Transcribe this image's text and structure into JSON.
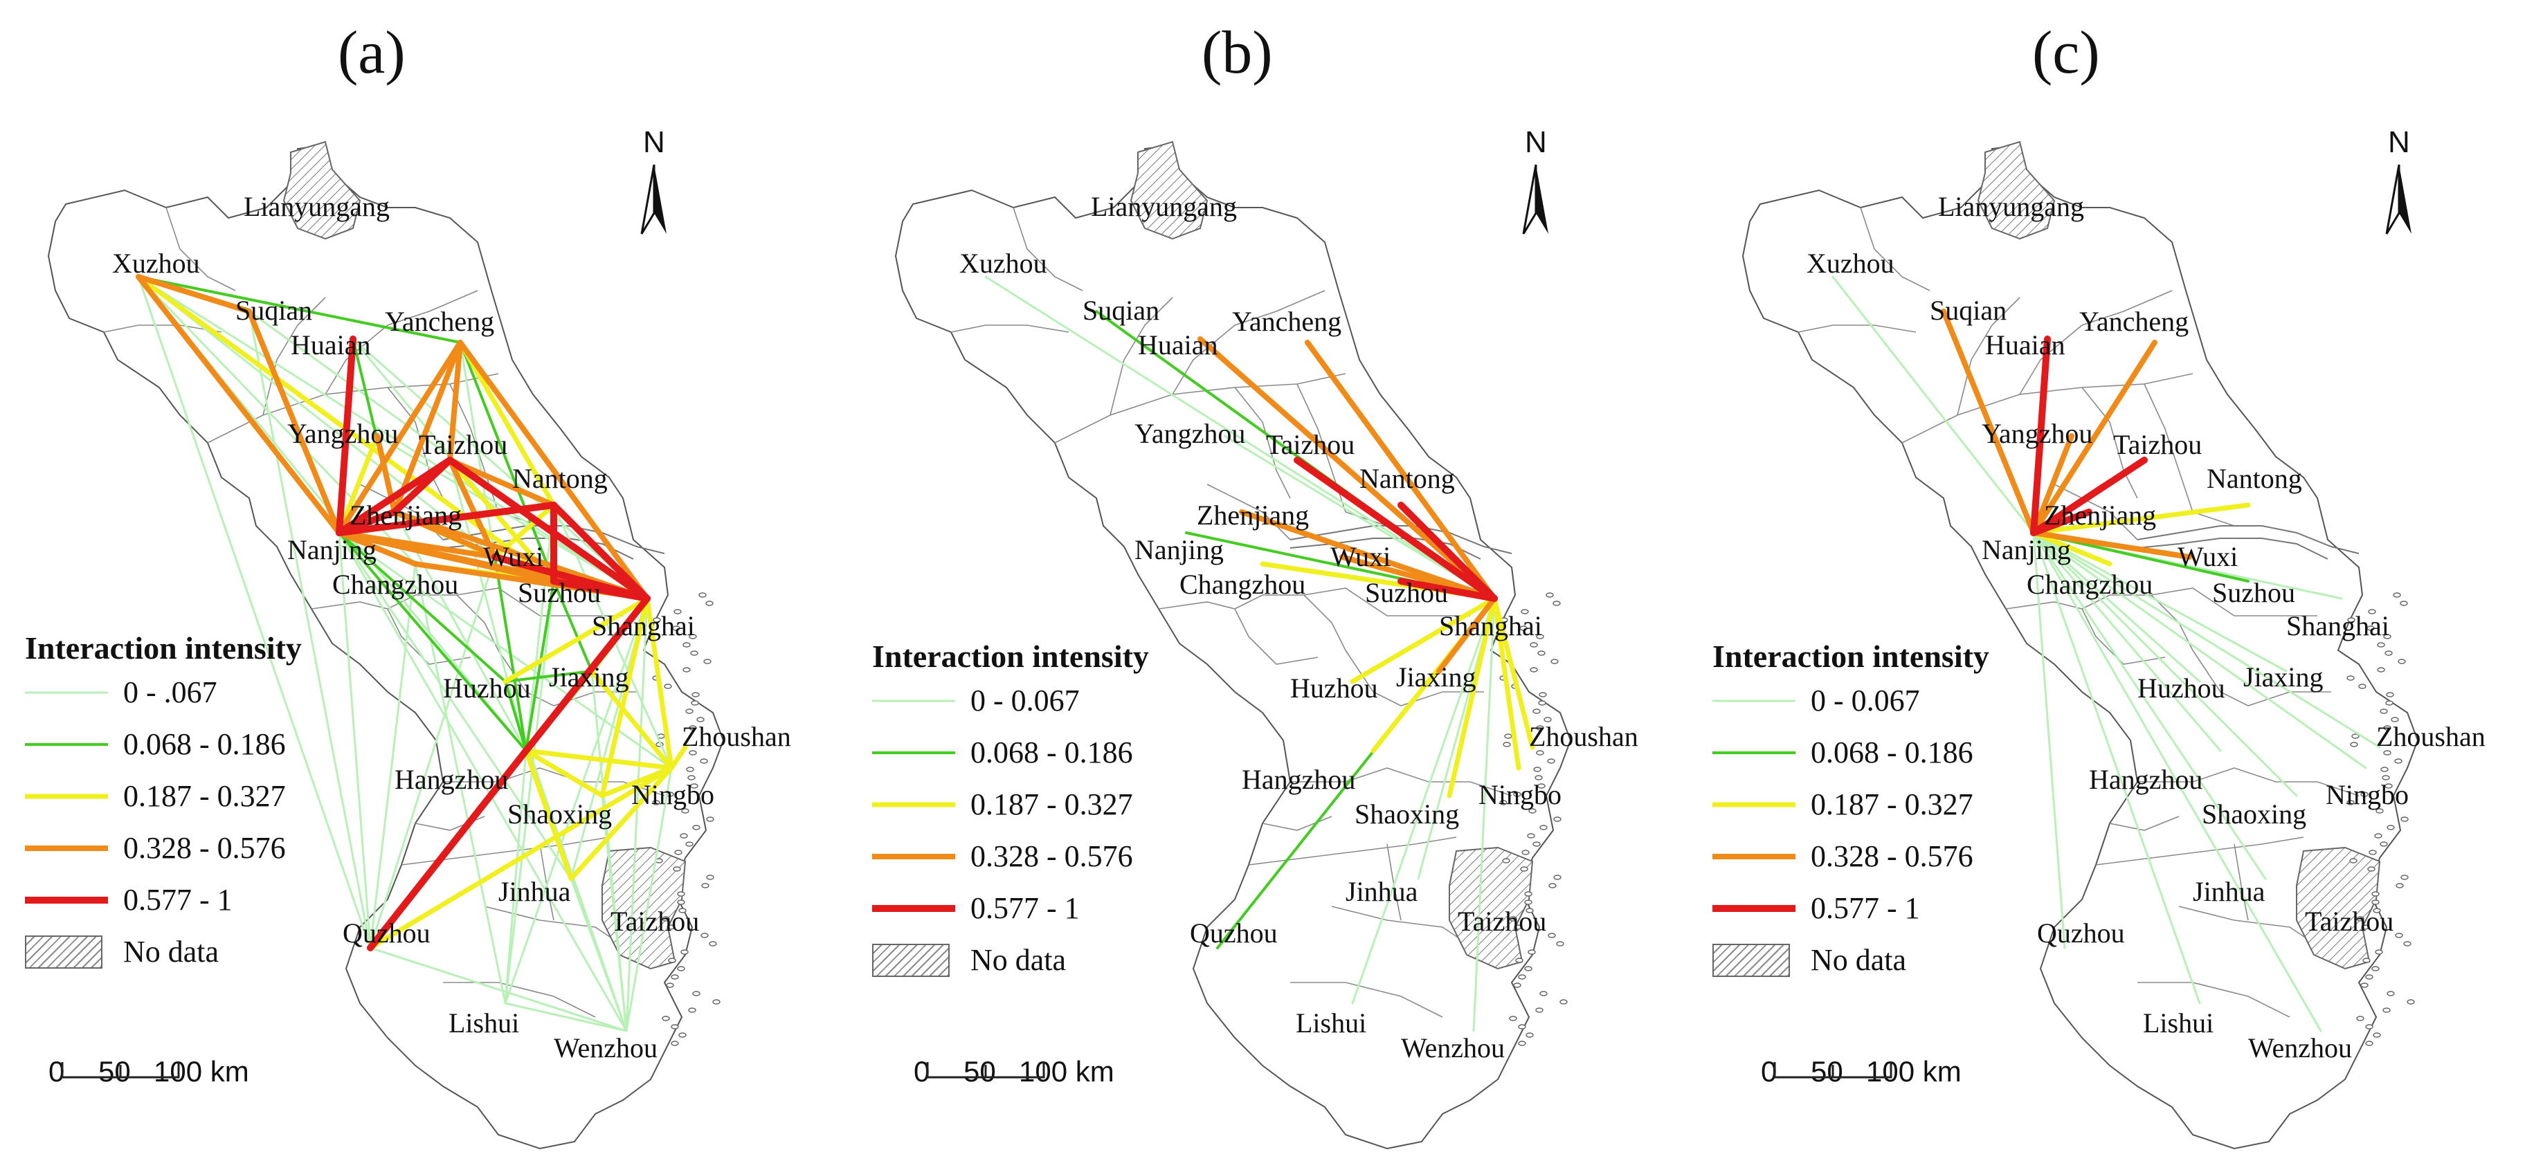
{
  "panels": [
    {
      "letter": "(a)",
      "legend": {
        "title": "Interaction intensity",
        "classes": [
          "0 - .067",
          "0.068 - 0.186",
          "0.187 - 0.327",
          "0.328 - 0.576",
          "0.577 - 1"
        ],
        "no_data": "No data"
      },
      "scale": {
        "zero": "0",
        "mid": "50",
        "end": "100 km"
      },
      "north": "N",
      "hubs": "all-pairs"
    },
    {
      "letter": "(b)",
      "legend": {
        "title": "Interaction intensity",
        "classes": [
          "0 - 0.067",
          "0.068 - 0.186",
          "0.187 - 0.327",
          "0.328 - 0.576",
          "0.577 - 1"
        ],
        "no_data": "No data"
      },
      "scale": {
        "zero": "0",
        "mid": "50",
        "end": "100 km"
      },
      "north": "N",
      "hubs": "Shanghai"
    },
    {
      "letter": "(c)",
      "legend": {
        "title": "Interaction intensity",
        "classes": [
          "0 - 0.067",
          "0.068 - 0.186",
          "0.187 - 0.327",
          "0.328 - 0.576",
          "0.577 - 1"
        ],
        "no_data": "No data"
      },
      "scale": {
        "zero": "0",
        "mid": "50",
        "end": "100 km"
      },
      "north": "N",
      "hubs": "Nanjing"
    }
  ],
  "cities": [
    "Lianyungang",
    "Xuzhou",
    "Suqian",
    "Huaian",
    "Yancheng",
    "Yangzhou",
    "Taizhou",
    "Nantong",
    "Zhenjiang",
    "Nanjing",
    "Wuxi",
    "Changzhou",
    "Suzhou",
    "Shanghai",
    "Huzhou",
    "Jiaxing",
    "Zhoushan",
    "Hangzhou",
    "Ningbo",
    "Shaoxing",
    "Jinhua",
    "Quzhou",
    "Taizhou",
    "Lishui",
    "Wenzhou"
  ],
  "no_data_cities": [
    "Lianyungang",
    "Taizhou (Zhejiang)"
  ],
  "class_colors": [
    "#b8f0b8",
    "#44cc22",
    "#f0f020",
    "#f08a18",
    "#e31a1c"
  ],
  "class_widths": [
    3,
    4,
    7,
    8,
    10
  ],
  "flows": {
    "a": [
      [
        "Xuzhou",
        "Yancheng",
        1
      ],
      [
        "Xuzhou",
        "Suzhou",
        2
      ],
      [
        "Xuzhou",
        "Nanjing",
        3
      ],
      [
        "Xuzhou",
        "Suqian",
        3
      ],
      [
        "Suqian",
        "Nanjing",
        3
      ],
      [
        "Huaian",
        "Nanjing",
        4
      ],
      [
        "Huaian",
        "Zhenjiang",
        1
      ],
      [
        "Yancheng",
        "Nanjing",
        3
      ],
      [
        "Yancheng",
        "Zhenjiang",
        3
      ],
      [
        "Yancheng",
        "Suzhou",
        1
      ],
      [
        "Yancheng",
        "Taizhou",
        3
      ],
      [
        "Yancheng",
        "Nantong",
        2
      ],
      [
        "Yangzhou",
        "Zhenjiang",
        3
      ],
      [
        "Yangzhou",
        "Nanjing",
        2
      ],
      [
        "Taizhou",
        "Zhenjiang",
        4
      ],
      [
        "Taizhou",
        "Nanjing",
        4
      ],
      [
        "Taizhou",
        "Wuxi",
        3
      ],
      [
        "Taizhou",
        "Suzhou",
        2
      ],
      [
        "Taizhou",
        "Shanghai",
        4
      ],
      [
        "Taizhou",
        "Nantong",
        3
      ],
      [
        "Nanjing",
        "Zhenjiang",
        4
      ],
      [
        "Nanjing",
        "Shanghai",
        3
      ],
      [
        "Nanjing",
        "Wuxi",
        3
      ],
      [
        "Nanjing",
        "Suzhou",
        3
      ],
      [
        "Nanjing",
        "Changzhou",
        3
      ],
      [
        "Nanjing",
        "Hangzhou",
        1
      ],
      [
        "Nanjing",
        "Nantong",
        4
      ],
      [
        "Zhenjiang",
        "Shanghai",
        3
      ],
      [
        "Zhenjiang",
        "Suzhou",
        3
      ],
      [
        "Zhenjiang",
        "Wuxi",
        2
      ],
      [
        "Nantong",
        "Shanghai",
        4
      ],
      [
        "Nantong",
        "Suzhou",
        4
      ],
      [
        "Nantong",
        "Wuxi",
        2
      ],
      [
        "Wuxi",
        "Shanghai",
        4
      ],
      [
        "Suzhou",
        "Shanghai",
        4
      ],
      [
        "Changzhou",
        "Shanghai",
        3
      ],
      [
        "Changzhou",
        "Suzhou",
        2
      ],
      [
        "Shanghai",
        "Hangzhou",
        4
      ],
      [
        "Shanghai",
        "Jiaxing",
        2
      ],
      [
        "Shanghai",
        "Ningbo",
        2
      ],
      [
        "Shanghai",
        "Huzhou",
        2
      ],
      [
        "Shanghai",
        "Yancheng",
        3
      ],
      [
        "Shanghai",
        "Shaoxing",
        2
      ],
      [
        "Hangzhou",
        "Quzhou",
        4
      ],
      [
        "Hangzhou",
        "Ningbo",
        2
      ],
      [
        "Hangzhou",
        "Jiaxing",
        2
      ],
      [
        "Hangzhou",
        "Shaoxing",
        2
      ],
      [
        "Hangzhou",
        "Jinhua",
        2
      ],
      [
        "Ningbo",
        "Jinhua",
        2
      ],
      [
        "Ningbo",
        "Shaoxing",
        2
      ],
      [
        "Ningbo",
        "Zhoushan",
        2
      ],
      [
        "Nanjing",
        "Huzhou",
        1
      ],
      [
        "Suzhou",
        "Hangzhou",
        1
      ],
      [
        "Suzhou",
        "Jiaxing",
        1
      ],
      [
        "Wuxi",
        "Hangzhou",
        1
      ],
      [
        "Xuzhou",
        "Hangzhou",
        0
      ],
      [
        "Xuzhou",
        "Shanghai",
        0
      ],
      [
        "Xuzhou",
        "Wuxi",
        0
      ],
      [
        "Xuzhou",
        "Changzhou",
        0
      ],
      [
        "Suqian",
        "Shanghai",
        0
      ],
      [
        "Huaian",
        "Shanghai",
        0
      ],
      [
        "Huaian",
        "Suzhou",
        0
      ],
      [
        "Yancheng",
        "Hangzhou",
        0
      ],
      [
        "Nanjing",
        "Quzhou",
        0
      ],
      [
        "Nanjing",
        "Jinhua",
        0
      ],
      [
        "Nanjing",
        "Ningbo",
        0
      ],
      [
        "Nanjing",
        "Wenzhou",
        0
      ],
      [
        "Shanghai",
        "Wenzhou",
        0
      ],
      [
        "Shanghai",
        "Jinhua",
        0
      ],
      [
        "Shanghai",
        "Lishui",
        0
      ],
      [
        "Shanghai",
        "Quzhou",
        0
      ],
      [
        "Hangzhou",
        "Wenzhou",
        0
      ],
      [
        "Hangzhou",
        "Lishui",
        0
      ],
      [
        "Ningbo",
        "Wenzhou",
        0
      ],
      [
        "Quzhou",
        "Wenzhou",
        0
      ],
      [
        "Jinhua",
        "Wenzhou",
        0
      ],
      [
        "Lishui",
        "Wenzhou",
        0
      ],
      [
        "Shaoxing",
        "Wenzhou",
        0
      ],
      [
        "Changzhou",
        "Quzhou",
        0
      ],
      [
        "Huzhou",
        "Wenzhou",
        0
      ],
      [
        "Jiaxing",
        "Wenzhou",
        0
      ],
      [
        "Suzhou",
        "Lishui",
        0
      ],
      [
        "Wuxi",
        "Quzhou",
        0
      ],
      [
        "Changzhou",
        "Lishui",
        0
      ],
      [
        "Zhenjiang",
        "Hangzhou",
        0
      ],
      [
        "Taizhou",
        "Hangzhou",
        0
      ],
      [
        "Nantong",
        "Hangzhou",
        0
      ],
      [
        "Nantong",
        "Ningbo",
        0
      ],
      [
        "Yangzhou",
        "Shanghai",
        0
      ],
      [
        "Jiaxing",
        "Ningbo",
        2
      ],
      [
        "Jiaxing",
        "Huzhou",
        1
      ],
      [
        "Huzhou",
        "Hangzhou",
        1
      ],
      [
        "Quzhou",
        "Ningbo",
        2
      ],
      [
        "Xuzhou",
        "Quzhou",
        0
      ],
      [
        "Suqian",
        "Quzhou",
        0
      ]
    ],
    "b": [
      [
        "Shanghai",
        "Suqian",
        1
      ],
      [
        "Shanghai",
        "Huaian",
        3
      ],
      [
        "Shanghai",
        "Yancheng",
        3
      ],
      [
        "Shanghai",
        "Taizhou",
        4
      ],
      [
        "Shanghai",
        "Nantong",
        4
      ],
      [
        "Shanghai",
        "Zhenjiang",
        3
      ],
      [
        "Shanghai",
        "Nanjing",
        1
      ],
      [
        "Shanghai",
        "Wuxi",
        3
      ],
      [
        "Shanghai",
        "Suzhou",
        4
      ],
      [
        "Shanghai",
        "Changzhou",
        2
      ],
      [
        "Shanghai",
        "Huzhou",
        2
      ],
      [
        "Shanghai",
        "Jiaxing",
        3
      ],
      [
        "Shanghai",
        "Hangzhou",
        2
      ],
      [
        "Shanghai",
        "Ningbo",
        2
      ],
      [
        "Shanghai",
        "Zhoushan",
        2
      ],
      [
        "Shanghai",
        "Shaoxing",
        2
      ],
      [
        "Shanghai",
        "Quzhou",
        1
      ],
      [
        "Shanghai",
        "Xuzhou",
        0
      ],
      [
        "Shanghai",
        "Jinhua",
        0
      ],
      [
        "Shanghai",
        "Lishui",
        0
      ],
      [
        "Shanghai",
        "Wenzhou",
        0
      ],
      [
        "Shanghai",
        "Yangzhou",
        0
      ]
    ],
    "c": [
      [
        "Nanjing",
        "Huaian",
        4
      ],
      [
        "Nanjing",
        "Suqian",
        3
      ],
      [
        "Nanjing",
        "Yancheng",
        3
      ],
      [
        "Nanjing",
        "Taizhou",
        4
      ],
      [
        "Nanjing",
        "Zhenjiang",
        4
      ],
      [
        "Nanjing",
        "Yangzhou",
        3
      ],
      [
        "Nanjing",
        "Nantong",
        2
      ],
      [
        "Nanjing",
        "Wuxi",
        3
      ],
      [
        "Nanjing",
        "Suzhou",
        1
      ],
      [
        "Nanjing",
        "Changzhou",
        2
      ],
      [
        "Nanjing",
        "Xuzhou",
        0
      ],
      [
        "Nanjing",
        "Shanghai",
        0
      ],
      [
        "Nanjing",
        "Huzhou",
        0
      ],
      [
        "Nanjing",
        "Jiaxing",
        0
      ],
      [
        "Nanjing",
        "Hangzhou",
        0
      ],
      [
        "Nanjing",
        "Shaoxing",
        0
      ],
      [
        "Nanjing",
        "Ningbo",
        0
      ],
      [
        "Nanjing",
        "Zhoushan",
        0
      ],
      [
        "Nanjing",
        "Jinhua",
        0
      ],
      [
        "Nanjing",
        "Quzhou",
        0
      ],
      [
        "Nanjing",
        "Lishui",
        0
      ],
      [
        "Nanjing",
        "Wenzhou",
        0
      ]
    ]
  }
}
